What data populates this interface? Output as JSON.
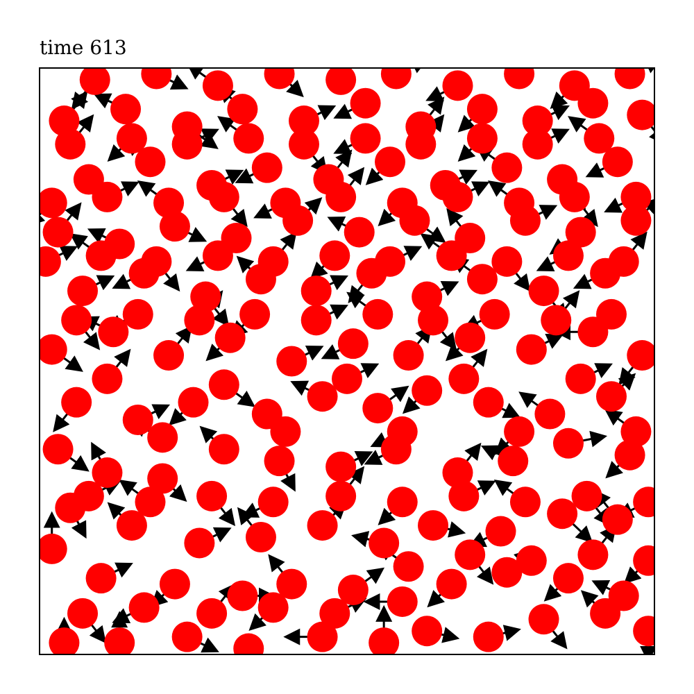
{
  "chart_data": {
    "type": "scatter",
    "title": "time 613",
    "xlim": [
      0,
      1
    ],
    "ylim": [
      0,
      1
    ],
    "grid": false,
    "legend": "none",
    "marker_color": "#ff0000",
    "arrow_color": "#000000",
    "particles": [
      [
        0.04,
        0.02,
        0.0,
        0.03
      ],
      [
        0.13,
        0.02,
        0.0,
        0.04
      ],
      [
        0.24,
        0.03,
        0.04,
        -0.02
      ],
      [
        0.34,
        0.01,
        0.0,
        -0.03
      ],
      [
        0.46,
        0.03,
        -0.05,
        0.0
      ],
      [
        0.56,
        0.02,
        0.0,
        0.05
      ],
      [
        0.63,
        0.04,
        0.04,
        -0.01
      ],
      [
        0.73,
        0.03,
        0.04,
        0.01
      ],
      [
        0.82,
        0.06,
        0.03,
        -0.04
      ],
      [
        0.92,
        0.07,
        -0.03,
        0.03
      ],
      [
        0.99,
        0.04,
        0.0,
        -0.04
      ],
      [
        0.02,
        0.18,
        0.0,
        0.05
      ],
      [
        0.1,
        0.13,
        0.04,
        0.02
      ],
      [
        0.22,
        0.12,
        -0.03,
        -0.03
      ],
      [
        0.33,
        0.1,
        0.04,
        0.0
      ],
      [
        0.41,
        0.12,
        -0.03,
        0.04
      ],
      [
        0.51,
        0.11,
        0.04,
        0.03
      ],
      [
        0.59,
        0.09,
        -0.05,
        0.0
      ],
      [
        0.67,
        0.12,
        -0.03,
        -0.03
      ],
      [
        0.76,
        0.14,
        0.03,
        0.03
      ],
      [
        0.86,
        0.13,
        -0.03,
        -0.03
      ],
      [
        0.95,
        0.1,
        -0.04,
        0.02
      ],
      [
        0.05,
        0.25,
        0.02,
        -0.04
      ],
      [
        0.15,
        0.22,
        -0.03,
        0.03
      ],
      [
        0.26,
        0.19,
        0.04,
        0.02
      ],
      [
        0.36,
        0.2,
        -0.03,
        0.04
      ],
      [
        0.46,
        0.22,
        0.03,
        0.03
      ],
      [
        0.56,
        0.19,
        -0.04,
        0.01
      ],
      [
        0.64,
        0.22,
        0.04,
        -0.01
      ],
      [
        0.75,
        0.21,
        -0.04,
        -0.02
      ],
      [
        0.85,
        0.24,
        0.04,
        -0.04
      ],
      [
        0.94,
        0.23,
        -0.03,
        0.04
      ],
      [
        0.03,
        0.35,
        0.04,
        -0.03
      ],
      [
        0.11,
        0.31,
        -0.02,
        0.04
      ],
      [
        0.2,
        0.3,
        0.03,
        -0.03
      ],
      [
        0.3,
        0.35,
        -0.03,
        0.03
      ],
      [
        0.39,
        0.33,
        0.02,
        -0.04
      ],
      [
        0.49,
        0.32,
        0.04,
        0.02
      ],
      [
        0.58,
        0.35,
        -0.04,
        -0.02
      ],
      [
        0.68,
        0.31,
        0.03,
        0.04
      ],
      [
        0.77,
        0.33,
        -0.04,
        0.02
      ],
      [
        0.86,
        0.36,
        0.05,
        0.01
      ],
      [
        0.96,
        0.34,
        -0.03,
        -0.03
      ],
      [
        0.06,
        0.43,
        -0.03,
        -0.04
      ],
      [
        0.16,
        0.4,
        0.04,
        0.02
      ],
      [
        0.25,
        0.43,
        -0.03,
        -0.03
      ],
      [
        0.37,
        0.41,
        0.03,
        -0.04
      ],
      [
        0.46,
        0.44,
        -0.04,
        0.02
      ],
      [
        0.55,
        0.42,
        0.04,
        0.03
      ],
      [
        0.63,
        0.45,
        -0.03,
        -0.03
      ],
      [
        0.73,
        0.43,
        0.04,
        -0.02
      ],
      [
        0.83,
        0.41,
        -0.04,
        0.03
      ],
      [
        0.93,
        0.44,
        0.03,
        0.03
      ],
      [
        0.02,
        0.52,
        0.04,
        -0.03
      ],
      [
        0.12,
        0.55,
        -0.04,
        0.02
      ],
      [
        0.21,
        0.51,
        0.03,
        0.04
      ],
      [
        0.31,
        0.54,
        -0.03,
        -0.03
      ],
      [
        0.41,
        0.5,
        0.04,
        0.02
      ],
      [
        0.51,
        0.53,
        -0.04,
        -0.02
      ],
      [
        0.6,
        0.51,
        0.03,
        0.04
      ],
      [
        0.7,
        0.54,
        -0.03,
        -0.03
      ],
      [
        0.8,
        0.52,
        0.04,
        0.02
      ],
      [
        0.9,
        0.55,
        -0.05,
        0.0
      ],
      [
        0.98,
        0.51,
        -0.03,
        -0.04
      ],
      [
        0.07,
        0.62,
        0.04,
        0.02
      ],
      [
        0.17,
        0.65,
        -0.04,
        -0.02
      ],
      [
        0.27,
        0.61,
        0.03,
        -0.04
      ],
      [
        0.36,
        0.64,
        -0.03,
        0.03
      ],
      [
        0.45,
        0.62,
        0.04,
        0.02
      ],
      [
        0.54,
        0.65,
        -0.03,
        -0.04
      ],
      [
        0.63,
        0.61,
        0.04,
        0.02
      ],
      [
        0.72,
        0.64,
        -0.04,
        0.03
      ],
      [
        0.82,
        0.62,
        0.03,
        -0.04
      ],
      [
        0.92,
        0.65,
        -0.04,
        -0.02
      ],
      [
        0.03,
        0.72,
        0.03,
        0.04
      ],
      [
        0.13,
        0.7,
        -0.04,
        0.02
      ],
      [
        0.22,
        0.73,
        0.04,
        -0.02
      ],
      [
        0.32,
        0.71,
        -0.03,
        -0.04
      ],
      [
        0.42,
        0.74,
        0.03,
        0.03
      ],
      [
        0.52,
        0.72,
        -0.04,
        0.02
      ],
      [
        0.61,
        0.74,
        0.04,
        -0.03
      ],
      [
        0.7,
        0.71,
        -0.03,
        0.04
      ],
      [
        0.79,
        0.74,
        0.04,
        0.02
      ],
      [
        0.88,
        0.72,
        -0.04,
        -0.03
      ],
      [
        0.97,
        0.74,
        0.03,
        0.03
      ],
      [
        0.08,
        0.81,
        0.04,
        -0.03
      ],
      [
        0.18,
        0.84,
        -0.03,
        0.03
      ],
      [
        0.28,
        0.8,
        0.04,
        0.02
      ],
      [
        0.37,
        0.83,
        -0.04,
        -0.02
      ],
      [
        0.47,
        0.81,
        0.03,
        0.04
      ],
      [
        0.57,
        0.84,
        -0.03,
        -0.03
      ],
      [
        0.66,
        0.8,
        0.04,
        0.02
      ],
      [
        0.76,
        0.83,
        -0.04,
        0.03
      ],
      [
        0.85,
        0.81,
        0.03,
        -0.04
      ],
      [
        0.94,
        0.84,
        -0.04,
        -0.02
      ],
      [
        0.04,
        0.91,
        0.03,
        0.04
      ],
      [
        0.14,
        0.93,
        -0.04,
        0.02
      ],
      [
        0.24,
        0.9,
        0.04,
        -0.03
      ],
      [
        0.33,
        0.93,
        -0.03,
        0.03
      ],
      [
        0.43,
        0.91,
        0.04,
        0.02
      ],
      [
        0.53,
        0.94,
        -0.04,
        -0.02
      ],
      [
        0.62,
        0.9,
        0.03,
        0.04
      ],
      [
        0.72,
        0.93,
        -0.03,
        -0.03
      ],
      [
        0.81,
        0.91,
        0.04,
        0.02
      ],
      [
        0.9,
        0.94,
        -0.04,
        0.03
      ],
      [
        0.98,
        0.92,
        0.03,
        -0.04
      ],
      [
        0.09,
        0.98,
        -0.03,
        -0.04
      ],
      [
        0.19,
        0.99,
        0.04,
        -0.02
      ],
      [
        0.29,
        0.97,
        -0.04,
        0.03
      ],
      [
        0.39,
        0.99,
        0.03,
        -0.03
      ],
      [
        0.49,
        0.98,
        -0.03,
        0.04
      ],
      [
        0.58,
        0.99,
        0.04,
        0.02
      ],
      [
        0.68,
        0.97,
        -0.04,
        -0.02
      ],
      [
        0.78,
        0.99,
        0.03,
        0.04
      ],
      [
        0.87,
        0.97,
        -0.03,
        -0.03
      ],
      [
        0.96,
        0.99,
        0.04,
        0.02
      ],
      [
        0.11,
        0.47,
        0.03,
        0.04
      ],
      [
        0.2,
        0.37,
        -0.04,
        0.02
      ],
      [
        0.3,
        0.46,
        0.04,
        -0.03
      ],
      [
        0.4,
        0.38,
        -0.03,
        0.03
      ],
      [
        0.5,
        0.47,
        0.04,
        0.02
      ],
      [
        0.59,
        0.38,
        -0.04,
        -0.02
      ],
      [
        0.69,
        0.47,
        0.03,
        0.04
      ],
      [
        0.78,
        0.38,
        -0.03,
        -0.03
      ],
      [
        0.88,
        0.47,
        0.04,
        0.02
      ],
      [
        0.97,
        0.38,
        -0.04,
        0.03
      ],
      [
        0.06,
        0.57,
        0.03,
        -0.04
      ],
      [
        0.16,
        0.58,
        -0.04,
        -0.02
      ],
      [
        0.26,
        0.57,
        0.03,
        0.04
      ],
      [
        0.35,
        0.58,
        -0.03,
        -0.03
      ],
      [
        0.45,
        0.57,
        0.04,
        0.02
      ],
      [
        0.55,
        0.58,
        -0.04,
        0.03
      ],
      [
        0.64,
        0.57,
        0.03,
        -0.04
      ],
      [
        0.74,
        0.58,
        -0.04,
        -0.02
      ],
      [
        0.84,
        0.57,
        0.03,
        0.04
      ],
      [
        0.93,
        0.58,
        -0.03,
        -0.03
      ],
      [
        0.01,
        0.67,
        0.04,
        0.02
      ],
      [
        0.1,
        0.68,
        -0.04,
        0.03
      ],
      [
        0.19,
        0.67,
        0.03,
        -0.04
      ],
      [
        0.29,
        0.68,
        -0.04,
        -0.02
      ],
      [
        0.38,
        0.67,
        0.03,
        0.04
      ],
      [
        0.48,
        0.68,
        -0.03,
        -0.03
      ],
      [
        0.57,
        0.67,
        0.04,
        0.02
      ],
      [
        0.67,
        0.68,
        -0.04,
        0.03
      ],
      [
        0.76,
        0.67,
        0.03,
        -0.04
      ],
      [
        0.86,
        0.68,
        -0.04,
        -0.02
      ],
      [
        0.95,
        0.67,
        0.03,
        0.04
      ],
      [
        0.02,
        0.77,
        -0.03,
        -0.03
      ],
      [
        0.11,
        0.78,
        0.04,
        0.02
      ],
      [
        0.21,
        0.77,
        -0.04,
        0.03
      ],
      [
        0.3,
        0.78,
        0.03,
        -0.04
      ],
      [
        0.4,
        0.77,
        -0.04,
        -0.02
      ],
      [
        0.49,
        0.78,
        0.03,
        0.04
      ],
      [
        0.59,
        0.77,
        -0.03,
        -0.03
      ],
      [
        0.68,
        0.78,
        0.04,
        0.02
      ],
      [
        0.78,
        0.77,
        -0.04,
        0.03
      ],
      [
        0.87,
        0.78,
        0.03,
        -0.04
      ],
      [
        0.97,
        0.78,
        -0.04,
        -0.02
      ],
      [
        0.05,
        0.87,
        0.03,
        0.04
      ],
      [
        0.15,
        0.88,
        -0.03,
        -0.03
      ],
      [
        0.24,
        0.87,
        0.04,
        0.02
      ],
      [
        0.34,
        0.88,
        -0.04,
        0.03
      ],
      [
        0.43,
        0.87,
        0.03,
        -0.04
      ],
      [
        0.53,
        0.88,
        -0.04,
        -0.02
      ],
      [
        0.62,
        0.87,
        0.03,
        0.04
      ],
      [
        0.72,
        0.88,
        -0.03,
        -0.03
      ],
      [
        0.81,
        0.87,
        0.04,
        0.02
      ],
      [
        0.91,
        0.88,
        -0.04,
        0.03
      ],
      [
        0.07,
        0.07,
        0.03,
        -0.04
      ],
      [
        0.17,
        0.08,
        -0.04,
        -0.02
      ],
      [
        0.28,
        0.07,
        0.03,
        0.04
      ],
      [
        0.38,
        0.08,
        -0.03,
        -0.03
      ],
      [
        0.48,
        0.07,
        0.04,
        0.02
      ],
      [
        0.6,
        0.15,
        -0.04,
        0.03
      ],
      [
        0.7,
        0.17,
        0.03,
        -0.04
      ],
      [
        0.8,
        0.16,
        -0.04,
        -0.02
      ],
      [
        0.9,
        0.17,
        0.03,
        0.04
      ],
      [
        0.99,
        0.16,
        -0.03,
        -0.03
      ],
      [
        0.08,
        0.27,
        0.04,
        0.02
      ],
      [
        0.18,
        0.26,
        -0.04,
        0.03
      ],
      [
        0.28,
        0.27,
        0.03,
        -0.04
      ],
      [
        0.38,
        0.26,
        -0.04,
        -0.02
      ],
      [
        0.49,
        0.27,
        0.03,
        0.04
      ],
      [
        0.59,
        0.26,
        -0.03,
        -0.03
      ],
      [
        0.69,
        0.27,
        0.04,
        0.02
      ],
      [
        0.79,
        0.26,
        -0.04,
        0.03
      ],
      [
        0.89,
        0.27,
        0.03,
        -0.04
      ],
      [
        0.99,
        0.26,
        -0.04,
        -0.02
      ]
    ]
  }
}
